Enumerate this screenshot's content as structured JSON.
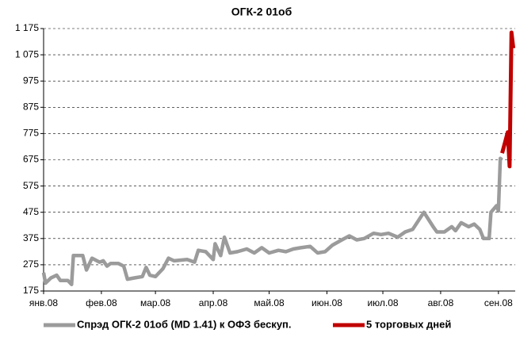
{
  "chart_data": {
    "type": "line",
    "title": "ОГК-2 01об",
    "xlim": [
      0,
      253
    ],
    "xticks": [
      {
        "value": 0,
        "label": "янв.08"
      },
      {
        "value": 31,
        "label": "фев.08"
      },
      {
        "value": 60,
        "label": "мар.08"
      },
      {
        "value": 91,
        "label": "апр.08"
      },
      {
        "value": 121,
        "label": "май.08"
      },
      {
        "value": 152,
        "label": "июн.08"
      },
      {
        "value": 182,
        "label": "июл.08"
      },
      {
        "value": 213,
        "label": "авг.08"
      },
      {
        "value": 244,
        "label": "сен.08"
      }
    ],
    "ylim": [
      175,
      1175
    ],
    "yticks": [
      175,
      275,
      375,
      475,
      575,
      675,
      775,
      875,
      975,
      {
        "value": 1075,
        "label": "1 075"
      },
      {
        "value": 1175,
        "label": "1 175"
      }
    ],
    "grid": true,
    "series": [
      {
        "name": "Спрэд ОГК-2 01об (MD 1.41) к ОФЗ бескуп.",
        "color": "#9b9b9b",
        "x": [
          0,
          1,
          4,
          7,
          9,
          13,
          15,
          16,
          21,
          23,
          26,
          30,
          32,
          34,
          36,
          40,
          43,
          45,
          49,
          53,
          55,
          57,
          60,
          64,
          67,
          70,
          77,
          81,
          83,
          87,
          91,
          92,
          95,
          97,
          100,
          104,
          109,
          113,
          117,
          121,
          126,
          130,
          134,
          138,
          143,
          147,
          151,
          155,
          160,
          164,
          168,
          172,
          177,
          181,
          185,
          190,
          194,
          198,
          204,
          209,
          211,
          215,
          219,
          221,
          224,
          228,
          231,
          234,
          236,
          239,
          240,
          243,
          244,
          245,
          246
        ],
        "values": [
          245,
          205,
          225,
          235,
          215,
          215,
          200,
          310,
          310,
          255,
          300,
          285,
          290,
          270,
          280,
          280,
          270,
          220,
          225,
          230,
          265,
          235,
          230,
          260,
          300,
          290,
          295,
          285,
          330,
          325,
          295,
          355,
          310,
          380,
          320,
          325,
          335,
          320,
          340,
          320,
          330,
          325,
          335,
          340,
          345,
          320,
          325,
          350,
          370,
          385,
          370,
          375,
          395,
          390,
          395,
          380,
          400,
          410,
          475,
          420,
          400,
          400,
          420,
          405,
          435,
          420,
          430,
          410,
          375,
          375,
          475,
          500,
          480,
          680,
          675
        ]
      },
      {
        "name": "5 торговых дней",
        "color": "#c00000",
        "x": [
          246,
          249,
          250,
          251,
          252
        ],
        "values": [
          700,
          780,
          650,
          1160,
          1100
        ]
      }
    ]
  }
}
